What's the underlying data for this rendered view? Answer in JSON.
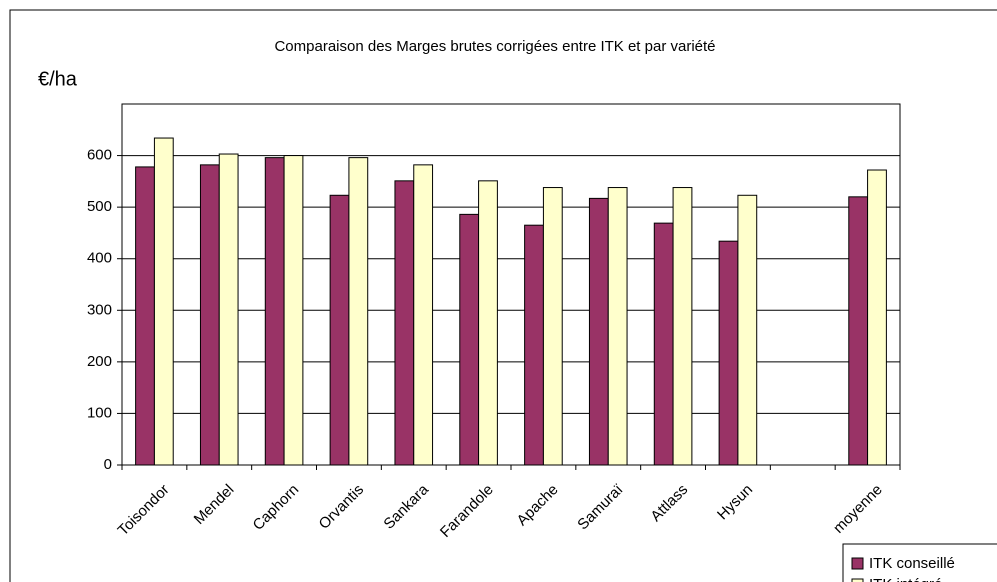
{
  "chart_data": {
    "type": "bar",
    "title": "Comparaison des Marges brutes corrigées entre ITK et par variété",
    "y_label": "€/ha",
    "categories": [
      "Toisondor",
      "Mendel",
      "Caphorn",
      "Orvantis",
      "Sankara",
      "Farandole",
      "Apache",
      "Samuraï",
      "Attlass",
      "Hysun",
      null,
      "moyenne"
    ],
    "series": [
      {
        "name": "ITK conseillé",
        "color": "#993366",
        "values": [
          578,
          582,
          596,
          523,
          551,
          486,
          465,
          517,
          469,
          434,
          null,
          520
        ]
      },
      {
        "name": "ITK intégré",
        "color": "#ffffcc",
        "values": [
          634,
          603,
          600,
          596,
          582,
          551,
          538,
          538,
          538,
          523,
          null,
          572
        ]
      }
    ],
    "ylim": [
      0,
      700
    ],
    "yticks": [
      0,
      100,
      200,
      300,
      400,
      500,
      600
    ],
    "grid": true,
    "legend": "bottom-right"
  }
}
